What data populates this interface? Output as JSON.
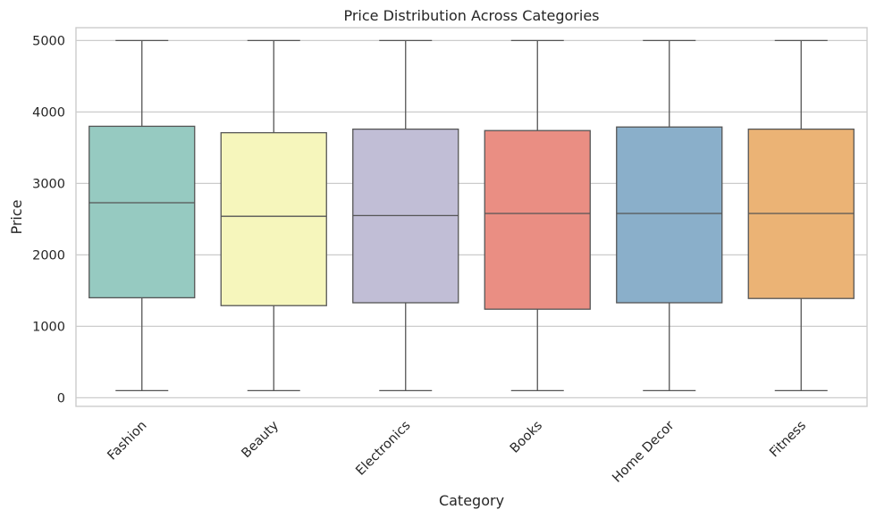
{
  "chart_data": {
    "type": "box",
    "title": "Price Distribution Across Categories",
    "xlabel": "Category",
    "ylabel": "Price",
    "ylim": [
      -120,
      5180
    ],
    "yticks": [
      0,
      1000,
      2000,
      3000,
      4000,
      5000
    ],
    "grid": true,
    "categories": [
      "Fashion",
      "Beauty",
      "Electronics",
      "Books",
      "Home Decor",
      "Fitness"
    ],
    "series": [
      {
        "category": "Fashion",
        "whislo": 100,
        "q1": 1400,
        "med": 2730,
        "q3": 3800,
        "whishi": 5000,
        "color": "#96cac1"
      },
      {
        "category": "Beauty",
        "whislo": 100,
        "q1": 1290,
        "med": 2540,
        "q3": 3710,
        "whishi": 5000,
        "color": "#f6f6bc"
      },
      {
        "category": "Electronics",
        "whislo": 100,
        "q1": 1330,
        "med": 2550,
        "q3": 3760,
        "whishi": 5000,
        "color": "#c1bed6"
      },
      {
        "category": "Books",
        "whislo": 100,
        "q1": 1240,
        "med": 2580,
        "q3": 3740,
        "whishi": 5000,
        "color": "#ea8e83"
      },
      {
        "category": "Home Decor",
        "whislo": 100,
        "q1": 1330,
        "med": 2580,
        "q3": 3790,
        "whishi": 5000,
        "color": "#8aafca"
      },
      {
        "category": "Fitness",
        "whislo": 100,
        "q1": 1390,
        "med": 2580,
        "q3": 3760,
        "whishi": 5000,
        "color": "#ebb375"
      }
    ]
  }
}
